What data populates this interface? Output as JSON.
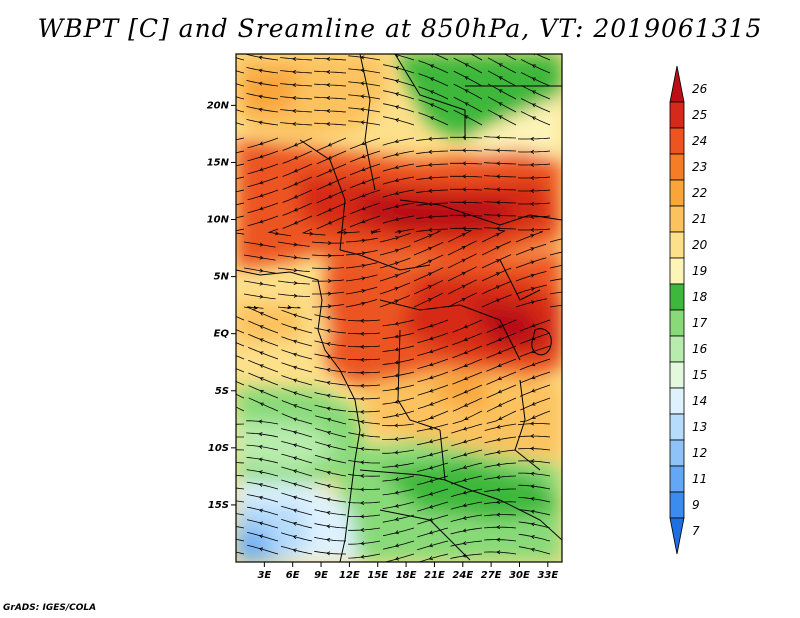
{
  "title": "WBPT [C] and Sreamline at 850hPa, VT: 2019061315",
  "credit": "GrADS: IGES/COLA",
  "map": {
    "lat_labels": [
      "20N",
      "15N",
      "10N",
      "5N",
      "EQ",
      "5S",
      "10S",
      "15S"
    ],
    "lon_labels": [
      "3E",
      "6E",
      "9E",
      "12E",
      "15E",
      "18E",
      "21E",
      "24E",
      "27E",
      "30E",
      "33E"
    ],
    "lat_values": [
      20,
      15,
      10,
      5,
      0,
      -5,
      -10,
      -15
    ],
    "lon_values": [
      3,
      6,
      9,
      12,
      15,
      18,
      21,
      24,
      27,
      30,
      33
    ],
    "lat_range": [
      -20,
      24.5
    ],
    "lon_range": [
      0,
      34.5
    ],
    "variable": "WBPT [C]",
    "level": "850hPa"
  },
  "colorbar": {
    "labels": [
      "7",
      "9",
      "11",
      "12",
      "13",
      "14",
      "15",
      "16",
      "17",
      "18",
      "19",
      "20",
      "21",
      "22",
      "23",
      "24",
      "25",
      "26"
    ],
    "colors": [
      "#1e6fe0",
      "#3c8cf0",
      "#64a8f5",
      "#8fc3f8",
      "#b7dcfb",
      "#def2fe",
      "#e4f8de",
      "#b8ecae",
      "#88da78",
      "#3eb83a",
      "#fdf4b8",
      "#fde08a",
      "#fcc25e",
      "#f9a53a",
      "#f57d26",
      "#ec5520",
      "#d62a18",
      "#b81014"
    ]
  }
}
